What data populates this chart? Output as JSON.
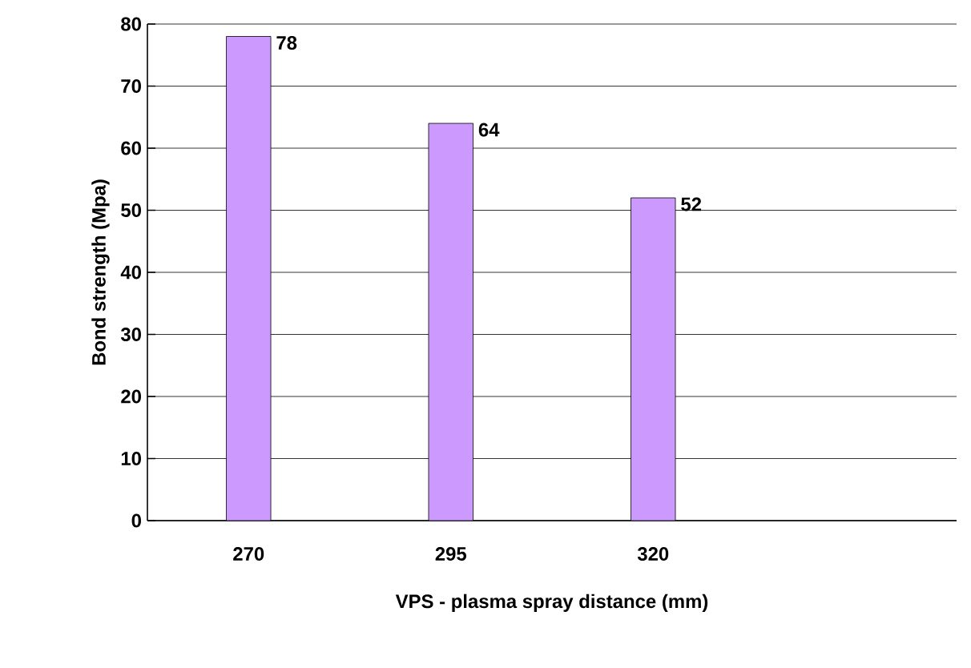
{
  "chart_data": {
    "type": "bar",
    "categories": [
      "270",
      "295",
      "320",
      null
    ],
    "values": [
      78,
      64,
      52,
      null
    ],
    "color": "#cc99ff",
    "xlabel": "VPS - plasma  spray  distance  (mm)",
    "ylabel": "Bond strength (Mpa)",
    "ylim": [
      0,
      80
    ],
    "yticks": [
      0,
      10,
      20,
      30,
      40,
      50,
      60,
      70,
      80
    ],
    "grid": "y",
    "data_labels": true
  }
}
